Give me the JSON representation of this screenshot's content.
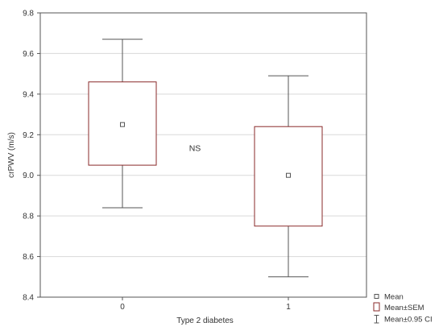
{
  "chart_data": {
    "type": "box",
    "xlabel": "Type 2 diabetes",
    "ylabel": "crPWV (m/s)",
    "categories": [
      "0",
      "1"
    ],
    "ylim": [
      8.4,
      9.8
    ],
    "yticks": [
      "8.4",
      "8.6",
      "8.8",
      "9.0",
      "9.2",
      "9.4",
      "9.6",
      "9.8"
    ],
    "grid": true,
    "series": [
      {
        "category": "0",
        "mean": 9.25,
        "sem_low": 9.05,
        "sem_high": 9.46,
        "ci_low": 8.84,
        "ci_high": 9.67
      },
      {
        "category": "1",
        "mean": 9.0,
        "sem_low": 8.75,
        "sem_high": 9.24,
        "ci_low": 8.5,
        "ci_high": 9.49
      }
    ],
    "annotation": "NS",
    "legend": {
      "position": "bottom-right",
      "items": [
        {
          "symbol": "mean-marker-icon",
          "label": "Mean"
        },
        {
          "symbol": "sem-box-icon",
          "label": "Mean±SEM"
        },
        {
          "symbol": "ci-whisker-icon",
          "label": "Mean±0.95 CI"
        }
      ]
    }
  }
}
